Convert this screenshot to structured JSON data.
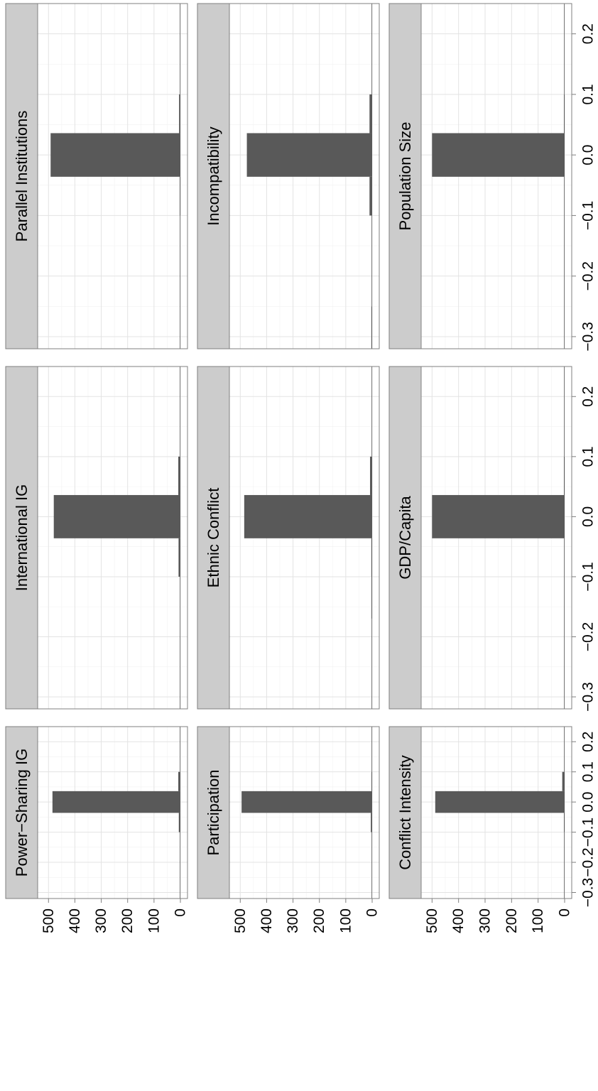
{
  "chart_data": {
    "type": "bar",
    "layout": "3x3 faceted histograms, rotated 90 degrees",
    "x_ticks": [
      "−0.3",
      "−0.2",
      "−0.1",
      "0.0",
      "0.1",
      "0.2"
    ],
    "x_tick_values": [
      -0.3,
      -0.2,
      -0.1,
      0.0,
      0.1,
      0.2
    ],
    "x_range": [
      -0.32,
      0.25
    ],
    "y_ticks": [
      "0",
      "100",
      "200",
      "300",
      "400",
      "500"
    ],
    "y_tick_values": [
      0,
      100,
      200,
      300,
      400,
      500
    ],
    "y_range": [
      0,
      525
    ],
    "grid": true,
    "bar_color": "#595959",
    "strip_color": "#cccccc",
    "panels": [
      {
        "title": "Power−Sharing IG",
        "bars": [
          {
            "x0": -0.32,
            "x1": -0.1,
            "y": 0
          },
          {
            "x0": -0.1,
            "x1": -0.036,
            "y": 6
          },
          {
            "x0": -0.036,
            "x1": 0.036,
            "y": 485
          },
          {
            "x0": 0.036,
            "x1": 0.1,
            "y": 8
          },
          {
            "x0": 0.1,
            "x1": 0.25,
            "y": 0
          }
        ]
      },
      {
        "title": "International IG",
        "bars": [
          {
            "x0": -0.32,
            "x1": -0.1,
            "y": 0
          },
          {
            "x0": -0.1,
            "x1": -0.036,
            "y": 7
          },
          {
            "x0": -0.036,
            "x1": 0.036,
            "y": 480
          },
          {
            "x0": 0.036,
            "x1": 0.1,
            "y": 8
          },
          {
            "x0": 0.1,
            "x1": 0.25,
            "y": 0
          }
        ]
      },
      {
        "title": "Parallel Institutions",
        "bars": [
          {
            "x0": -0.32,
            "x1": -0.1,
            "y": 0
          },
          {
            "x0": -0.1,
            "x1": -0.036,
            "y": 2
          },
          {
            "x0": -0.036,
            "x1": 0.036,
            "y": 492
          },
          {
            "x0": 0.036,
            "x1": 0.1,
            "y": 5
          },
          {
            "x0": 0.1,
            "x1": 0.25,
            "y": 0
          }
        ]
      },
      {
        "title": "Participation",
        "bars": [
          {
            "x0": -0.32,
            "x1": -0.1,
            "y": 0
          },
          {
            "x0": -0.1,
            "x1": -0.036,
            "y": 5
          },
          {
            "x0": -0.036,
            "x1": 0.036,
            "y": 495
          },
          {
            "x0": 0.036,
            "x1": 0.1,
            "y": 2
          },
          {
            "x0": 0.1,
            "x1": 0.25,
            "y": 0
          }
        ]
      },
      {
        "title": "Ethnic Conflict",
        "bars": [
          {
            "x0": -0.32,
            "x1": -0.17,
            "y": 0
          },
          {
            "x0": -0.17,
            "x1": -0.1,
            "y": 2
          },
          {
            "x0": -0.1,
            "x1": -0.036,
            "y": 3
          },
          {
            "x0": -0.036,
            "x1": 0.036,
            "y": 485
          },
          {
            "x0": 0.036,
            "x1": 0.1,
            "y": 8
          },
          {
            "x0": 0.1,
            "x1": 0.25,
            "y": 0
          }
        ]
      },
      {
        "title": "Incompatibility",
        "bars": [
          {
            "x0": -0.32,
            "x1": -0.25,
            "y": 3
          },
          {
            "x0": -0.25,
            "x1": -0.1,
            "y": 0
          },
          {
            "x0": -0.1,
            "x1": -0.036,
            "y": 10
          },
          {
            "x0": -0.036,
            "x1": 0.036,
            "y": 475
          },
          {
            "x0": 0.036,
            "x1": 0.1,
            "y": 10
          },
          {
            "x0": 0.1,
            "x1": 0.25,
            "y": 0
          }
        ]
      },
      {
        "title": "Conflict Intensity",
        "bars": [
          {
            "x0": -0.32,
            "x1": -0.1,
            "y": 0
          },
          {
            "x0": -0.1,
            "x1": -0.036,
            "y": 2
          },
          {
            "x0": -0.036,
            "x1": 0.036,
            "y": 488
          },
          {
            "x0": 0.036,
            "x1": 0.1,
            "y": 9
          },
          {
            "x0": 0.1,
            "x1": 0.25,
            "y": 0
          }
        ]
      },
      {
        "title": "GDP/Capita",
        "bars": [
          {
            "x0": -0.32,
            "x1": -0.036,
            "y": 0
          },
          {
            "x0": -0.036,
            "x1": 0.036,
            "y": 500
          },
          {
            "x0": 0.036,
            "x1": 0.1,
            "y": 1
          },
          {
            "x0": 0.1,
            "x1": 0.25,
            "y": 0
          }
        ]
      },
      {
        "title": "Population Size",
        "bars": [
          {
            "x0": -0.32,
            "x1": -0.036,
            "y": 0
          },
          {
            "x0": -0.036,
            "x1": 0.036,
            "y": 500
          },
          {
            "x0": 0.036,
            "x1": 0.1,
            "y": 1
          },
          {
            "x0": 0.1,
            "x1": 0.25,
            "y": 0
          }
        ]
      }
    ]
  }
}
